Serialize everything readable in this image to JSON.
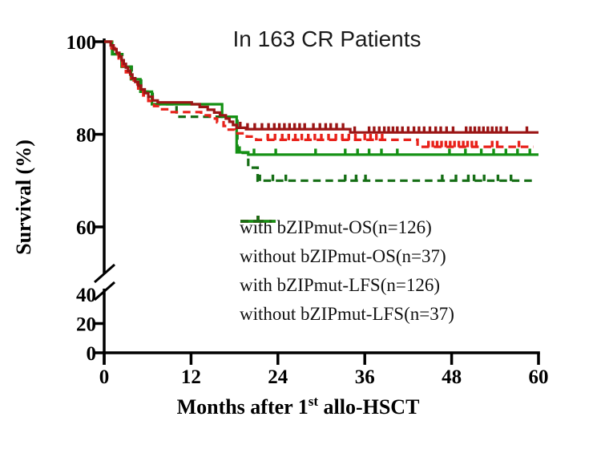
{
  "header": {
    "title": "In 163 CR Patients"
  },
  "colors": {
    "axis": "#000000",
    "title_text": "#1b1b1b",
    "legend_text": "#111111",
    "background": "#ffffff"
  },
  "chart_data": {
    "type": "line",
    "subtype": "kaplan-meier-step",
    "title": "In 163 CR Patients",
    "xlabel": "Months after 1st allo-HSCT",
    "xlabel_parts": [
      "Months after 1",
      "st",
      " allo-HSCT"
    ],
    "ylabel": "Survival (%)",
    "x_ticks": [
      0,
      12,
      24,
      36,
      48,
      60
    ],
    "x_range": [
      0,
      60
    ],
    "y_ticks_upper": [
      60,
      80,
      100
    ],
    "y_ticks_lower": [
      0,
      20,
      40
    ],
    "y_axis_break": [
      40,
      60
    ],
    "grid": false,
    "legend_position": "inside-lower-right",
    "series": [
      {
        "name": "with bZIPmut-OS(n=126)",
        "color": "#9B1515",
        "style": "solid",
        "steps": [
          [
            0,
            100
          ],
          [
            0.9,
            99.2
          ],
          [
            1.3,
            98.4
          ],
          [
            1.7,
            97.6
          ],
          [
            2.1,
            96.8
          ],
          [
            2.4,
            96.0
          ],
          [
            2.7,
            95.2
          ],
          [
            3.0,
            94.4
          ],
          [
            3.3,
            93.7
          ],
          [
            3.6,
            92.9
          ],
          [
            3.9,
            92.1
          ],
          [
            4.3,
            91.3
          ],
          [
            4.7,
            90.5
          ],
          [
            5.1,
            89.7
          ],
          [
            5.6,
            88.9
          ],
          [
            6.1,
            88.1
          ],
          [
            6.7,
            87.3
          ],
          [
            7.4,
            86.9
          ],
          [
            12.1,
            86.5
          ],
          [
            13.2,
            85.9
          ],
          [
            14.3,
            85.3
          ],
          [
            15.2,
            84.7
          ],
          [
            16.0,
            84.1
          ],
          [
            16.8,
            83.4
          ],
          [
            17.3,
            82.7
          ],
          [
            17.8,
            82.0
          ],
          [
            18.3,
            81.4
          ],
          [
            19.6,
            81.1
          ],
          [
            34.0,
            80.4
          ],
          [
            60,
            80.4
          ]
        ],
        "censor_months": [
          18.8,
          19.8,
          20.8,
          21.8,
          22.7,
          23.5,
          24.2,
          24.9,
          25.6,
          26.3,
          27.0,
          27.7,
          28.9,
          29.8,
          30.6,
          31.3,
          32.1,
          33.0,
          34.6,
          36.6,
          37.3,
          38.0,
          38.7,
          39.3,
          39.9,
          40.5,
          41.2,
          42.0,
          42.8,
          43.5,
          44.2,
          45.0,
          45.8,
          46.5,
          47.3,
          48.2,
          50.0,
          50.6,
          51.2,
          51.8,
          52.4,
          53.0,
          53.6,
          54.2,
          54.8,
          55.6,
          58.4
        ]
      },
      {
        "name": "without bZIPmut-OS(n=37)",
        "color": "#149114",
        "style": "solid",
        "steps": [
          [
            0,
            100
          ],
          [
            1.1,
            97.3
          ],
          [
            2.4,
            94.6
          ],
          [
            3.7,
            91.9
          ],
          [
            5.0,
            89.2
          ],
          [
            6.6,
            86.5
          ],
          [
            16.3,
            83.8
          ],
          [
            18.3,
            76.1
          ],
          [
            19.9,
            75.6
          ],
          [
            60,
            75.6
          ]
        ],
        "censor_months": [
          18.7,
          20.7,
          23.7,
          29.2,
          33.3,
          35.0,
          36.6,
          38.3,
          40.5,
          47.7,
          49.9,
          52.1,
          53.8,
          55.5,
          57.1,
          58.8
        ]
      },
      {
        "name": "with bZIPmut-LFS(n=126)",
        "color": "#E8211A",
        "style": "dashed",
        "steps": [
          [
            0,
            100
          ],
          [
            1.0,
            98.6
          ],
          [
            1.5,
            97.3
          ],
          [
            2.0,
            96.0
          ],
          [
            2.5,
            94.7
          ],
          [
            3.0,
            93.4
          ],
          [
            3.5,
            92.1
          ],
          [
            4.1,
            90.8
          ],
          [
            4.7,
            89.6
          ],
          [
            5.4,
            88.4
          ],
          [
            6.1,
            87.2
          ],
          [
            6.9,
            86.1
          ],
          [
            7.7,
            85.4
          ],
          [
            9.0,
            84.8
          ],
          [
            13.4,
            84.1
          ],
          [
            14.6,
            83.4
          ],
          [
            15.6,
            82.6
          ],
          [
            16.5,
            81.8
          ],
          [
            17.2,
            81.0
          ],
          [
            18.0,
            80.2
          ],
          [
            19.7,
            79.5
          ],
          [
            21.0,
            78.8
          ],
          [
            43.3,
            77.3
          ],
          [
            59.3,
            77.3
          ]
        ],
        "censor_months": [
          22.6,
          23.6,
          24.6,
          25.5,
          26.4,
          27.3,
          28.2,
          29.1,
          30.0,
          31.0,
          32.0,
          32.9,
          33.8,
          34.7,
          36.0,
          36.8,
          37.6,
          38.4,
          44.8,
          45.4,
          46.0,
          46.6,
          47.2,
          47.8,
          48.4,
          49.0,
          49.6,
          50.2,
          50.8,
          51.4,
          53.6,
          54.3,
          57.3
        ]
      },
      {
        "name": "without bZIPmut-LFS(n=37)",
        "color": "#156E15",
        "style": "dashed",
        "steps": [
          [
            0,
            100
          ],
          [
            1.2,
            97.3
          ],
          [
            2.5,
            94.6
          ],
          [
            3.8,
            91.9
          ],
          [
            5.1,
            89.2
          ],
          [
            6.7,
            86.5
          ],
          [
            10.0,
            83.8
          ],
          [
            18.4,
            76.0
          ],
          [
            19.9,
            72.8
          ],
          [
            21.2,
            70.0
          ],
          [
            59.6,
            70.0
          ]
        ],
        "censor_months": [
          21.5,
          23.3,
          25.1,
          33.3,
          34.8,
          36.1,
          46.7,
          48.6,
          50.3,
          51.1,
          52.5,
          54.4,
          56.2
        ]
      }
    ]
  },
  "legend": {
    "items": [
      {
        "label": "with bZIPmut-OS(n=126)"
      },
      {
        "label": "without bZIPmut-OS(n=37)"
      },
      {
        "label": "with bZIPmut-LFS(n=126)"
      },
      {
        "label": "without bZIPmut-LFS(n=37)"
      }
    ]
  }
}
